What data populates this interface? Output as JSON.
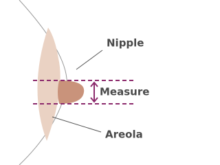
{
  "labels": {
    "nipple": "Nipple",
    "measure": "Measure",
    "areola": "Areola"
  }
}
